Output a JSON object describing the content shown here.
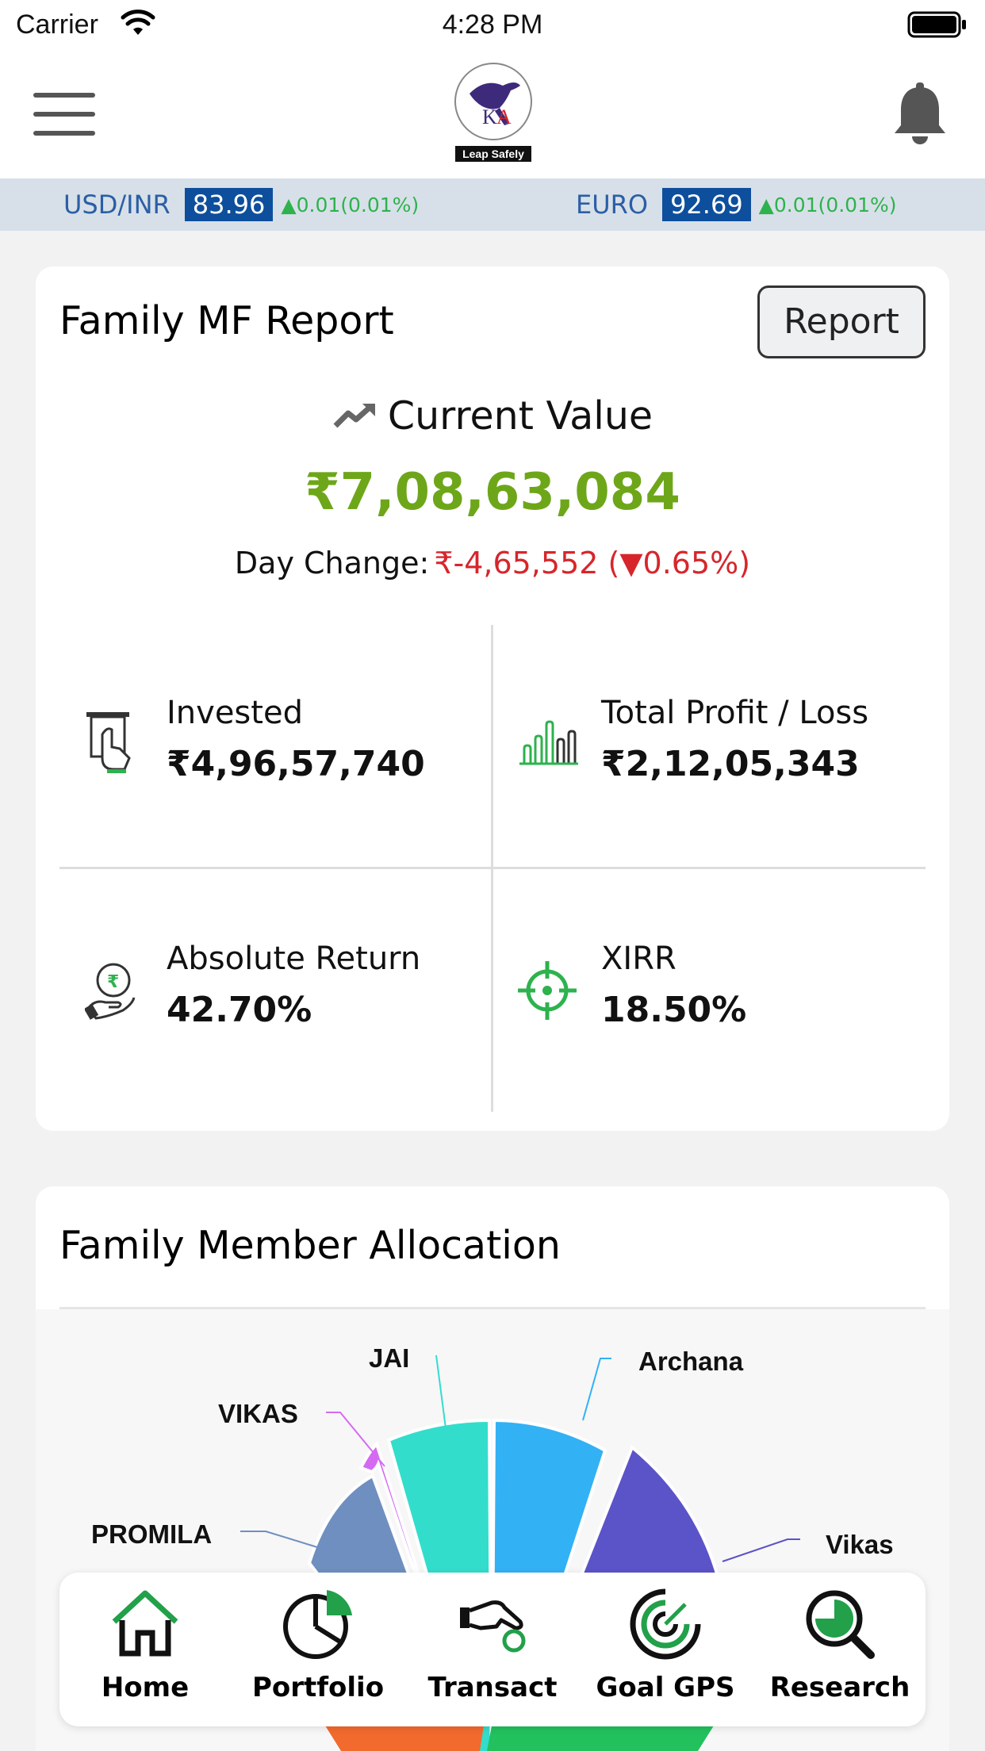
{
  "status_bar": {
    "carrier": "Carrier",
    "time": "4:28 PM"
  },
  "header": {
    "logo_text": "Leap Safely",
    "logo_letters": "KA"
  },
  "ticker": [
    {
      "name": "USD/INR",
      "value": "83.96",
      "change": "▲0.01(0.01%)"
    },
    {
      "name": "EURO",
      "value": "92.69",
      "change": "▲0.01(0.01%)"
    }
  ],
  "mf_report": {
    "title": "Family MF Report",
    "report_button": "Report",
    "current_value_label": "Current Value",
    "current_value": "₹7,08,63,084",
    "day_change_label": "Day Change:",
    "day_change_value": "₹-4,65,552 (▼0.65%)",
    "stats": [
      {
        "label": "Invested",
        "value": "₹4,96,57,740",
        "icon": "invest-icon"
      },
      {
        "label": "Total Profit / Loss",
        "value": "₹2,12,05,343",
        "icon": "bar-chart-icon"
      },
      {
        "label": "Absolute Return",
        "value": "42.70%",
        "icon": "rupee-hand-icon"
      },
      {
        "label": "XIRR",
        "value": "18.50%",
        "icon": "target-icon"
      }
    ]
  },
  "allocation": {
    "title": "Family Member Allocation",
    "labels": [
      "JAI",
      "Archana",
      "VIKAS",
      "PROMILA",
      "Vikas"
    ]
  },
  "colors": {
    "accent_green": "#6ea61a",
    "loss_red": "#d6262c",
    "ticker_blue": "#0d4f9c",
    "nav_green": "#22a04a"
  },
  "bottom_nav": [
    {
      "label": "Home",
      "icon": "home-icon"
    },
    {
      "label": "Portfolio",
      "icon": "pie-chart-icon"
    },
    {
      "label": "Transact",
      "icon": "hand-coin-icon"
    },
    {
      "label": "Goal GPS",
      "icon": "goal-gps-icon"
    },
    {
      "label": "Research",
      "icon": "research-icon"
    }
  ]
}
